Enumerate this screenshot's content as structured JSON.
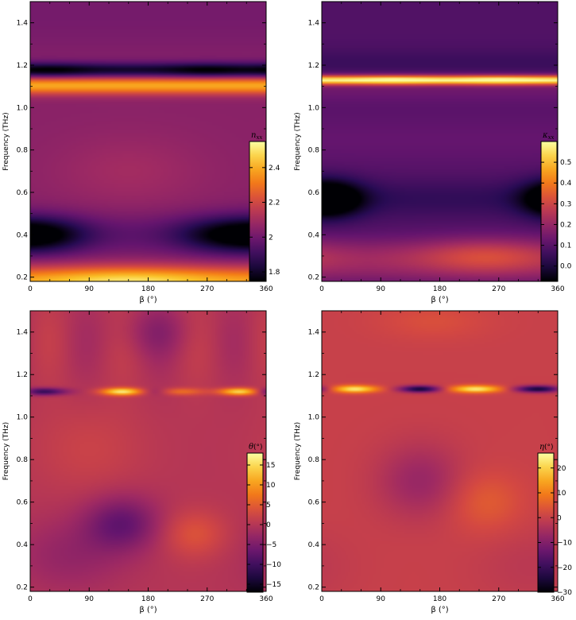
{
  "chart_data": [
    {
      "id": "nxx",
      "type": "heatmap",
      "xlabel": "β (°)",
      "ylabel": "Frequency (THz)",
      "xlim": [
        0,
        360
      ],
      "ylim": [
        0.18,
        1.5
      ],
      "xticks": [
        0,
        90,
        180,
        270,
        360
      ],
      "yticks": [
        0.2,
        0.4,
        0.6,
        0.8,
        1.0,
        1.2,
        1.4
      ],
      "colormap": "inferno",
      "colorbar": {
        "label_main": "n",
        "label_sub": "xx",
        "range": [
          1.75,
          2.55
        ],
        "ticks": [
          1.8,
          2.0,
          2.2,
          2.4
        ]
      },
      "description": "Bright band near 0.18–0.25 THz (max ~2.5 near β≈150°), dark regions around 0.35–0.45 THz near β≈20° and β≈290°, bright orange band at ~1.12 THz, dark band at ~1.15–1.18 THz, mid-level elsewhere (~2.0–2.1)."
    },
    {
      "id": "kxx",
      "type": "heatmap",
      "xlabel": "β (°)",
      "ylabel": "Frequency (THz)",
      "xlim": [
        0,
        360
      ],
      "ylim": [
        0.18,
        1.5
      ],
      "xticks": [
        0,
        90,
        180,
        270,
        360
      ],
      "yticks": [
        0.2,
        0.4,
        0.6,
        0.8,
        1.0,
        1.2,
        1.4
      ],
      "colormap": "inferno",
      "colorbar": {
        "label_main": "κ",
        "label_sub": "xx",
        "range": [
          -0.07,
          0.6
        ],
        "ticks": [
          0.0,
          0.1,
          0.2,
          0.3,
          0.4,
          0.5
        ]
      },
      "description": "Very bright band at ~1.13 THz (max ~0.6), dark minima near 0.55–0.6 THz at β≈20° and β≈350°, orange region around 0.25–0.35 THz near β≈250°, purple background (~0.1)."
    },
    {
      "id": "theta",
      "type": "heatmap",
      "xlabel": "β (°)",
      "ylabel": "Frequency (THz)",
      "xlim": [
        0,
        360
      ],
      "ylim": [
        0.18,
        1.5
      ],
      "xticks": [
        0,
        90,
        180,
        270,
        360
      ],
      "yticks": [
        0.2,
        0.4,
        0.6,
        0.8,
        1.0,
        1.2,
        1.4
      ],
      "colormap": "inferno",
      "colorbar": {
        "label_main": "θ",
        "label_sub": "",
        "label_unit": "(°)",
        "range": [
          -17,
          18
        ],
        "ticks": [
          -15,
          -10,
          -5,
          0,
          5,
          10,
          15
        ]
      },
      "description": "Mostly near 0°, alternating bright/dark spots along ~1.12 THz (bright near β≈140° and β≈320°), darker region near 0.5 THz at β≈140°, orange region near 0.45 THz at β≈250°."
    },
    {
      "id": "eta",
      "type": "heatmap",
      "xlabel": "β (°)",
      "ylabel": "Frequency (THz)",
      "xlim": [
        0,
        360
      ],
      "ylim": [
        0.18,
        1.5
      ],
      "xticks": [
        0,
        90,
        180,
        270,
        360
      ],
      "yticks": [
        0.2,
        0.4,
        0.6,
        0.8,
        1.0,
        1.2,
        1.4
      ],
      "colormap": "inferno",
      "colorbar": {
        "label_main": "η",
        "label_sub": "",
        "label_unit": "(°)",
        "range": [
          -30,
          26
        ],
        "ticks": [
          -30,
          -20,
          -10,
          0,
          10,
          20
        ]
      },
      "description": "Mostly near 0°, bright spots near 1.13 THz at β≈50° and β≈230°, dark spots at β≈150° and β≈330°, slightly darker region near 0.7 THz at β≈150°."
    }
  ]
}
